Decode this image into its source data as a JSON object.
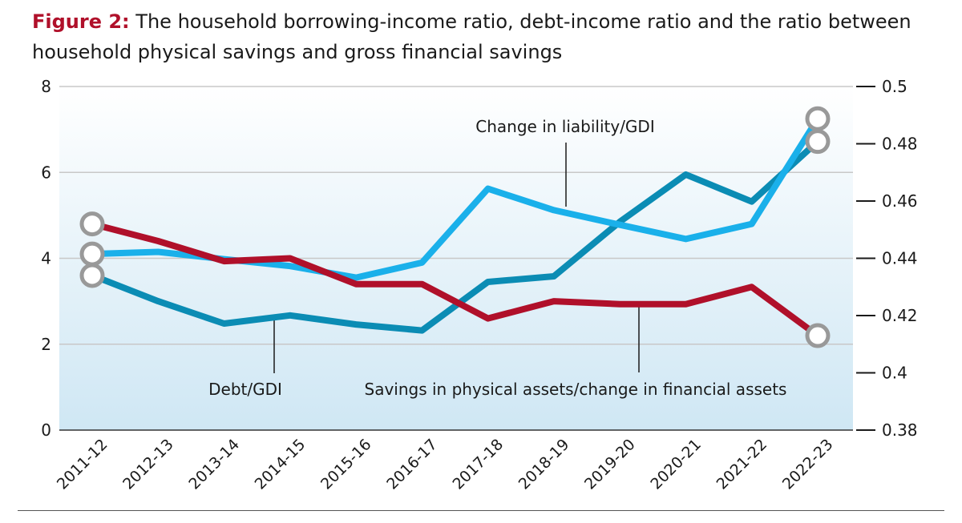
{
  "title": {
    "figure_label": "Figure 2:",
    "text": "The household borrowing-income ratio, debt-income ratio and the ratio between household physical savings and gross financial savings"
  },
  "colors": {
    "liability": "#1ab0ea",
    "debt": "#0b8cb4",
    "savings": "#b0102a",
    "grid": "#c8c8c8",
    "marker_stroke": "#999999"
  },
  "chart_data": {
    "type": "line",
    "categories": [
      "2011-12",
      "2012-13",
      "2013-14",
      "2014-15",
      "2015-16",
      "2016-17",
      "2017-18",
      "2018-19",
      "2019-20",
      "2020-21",
      "2021-22",
      "2022-23"
    ],
    "left_axis": {
      "ylim": [
        0,
        8
      ],
      "ticks": [
        "0",
        "2",
        "4",
        "6",
        "8"
      ]
    },
    "right_axis": {
      "ylim": [
        0.38,
        0.5
      ],
      "ticks": [
        "0.38",
        "0.4",
        "0.42",
        "0.44",
        "0.46",
        "0.48",
        "0.5"
      ]
    },
    "series": [
      {
        "key": "liability",
        "axis": "left",
        "values": [
          4.1,
          4.15,
          3.98,
          3.82,
          3.55,
          3.9,
          5.62,
          5.12,
          4.78,
          4.45,
          4.8,
          7.25
        ]
      },
      {
        "key": "debt",
        "axis": "left",
        "values": [
          3.6,
          3.0,
          2.48,
          2.67,
          2.46,
          2.32,
          3.45,
          3.58,
          4.85,
          5.95,
          5.32,
          6.72
        ]
      },
      {
        "key": "savings",
        "axis": "right",
        "values": [
          0.452,
          0.446,
          0.439,
          0.44,
          0.431,
          0.431,
          0.419,
          0.425,
          0.424,
          0.424,
          0.43,
          0.413
        ]
      }
    ],
    "annotations": [
      {
        "text": "Change in liability/GDI",
        "series": "liability"
      },
      {
        "text": "Debt/GDI",
        "series": "debt"
      },
      {
        "text": "Savings in physical assets/change in financial assets",
        "series": "savings"
      }
    ],
    "grid": true,
    "background": "gradient light blue"
  }
}
